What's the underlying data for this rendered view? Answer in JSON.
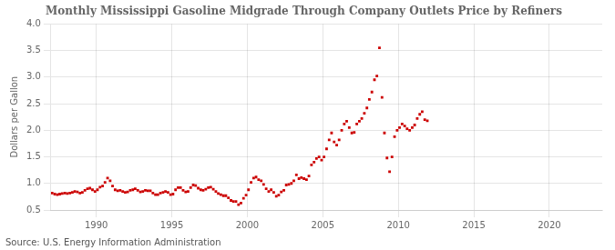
{
  "chart_data": {
    "type": "scatter",
    "title": "Monthly Mississippi Gasoline Midgrade Through Company Outlets Price by Refiners",
    "ylabel": "Dollars per Gallon",
    "annotations": [
      "Source: U.S. Energy Information Administration"
    ],
    "color": "#cc0000",
    "marker": "square",
    "grid": true,
    "xlim": [
      1987.0,
      2023.5
    ],
    "xticks": [
      1990,
      1995,
      2000,
      2005,
      2010,
      2015,
      2020
    ],
    "ylim": [
      0.5,
      4.0
    ],
    "yticks": [
      0.5,
      {
        "value": 1.0,
        "label": "1.0"
      },
      1.5,
      {
        "value": 2.0,
        "label": "2.0"
      },
      2.5,
      {
        "value": 3.0,
        "label": "3.0"
      },
      3.5,
      {
        "value": 4.0,
        "label": "4.0"
      }
    ],
    "x": [
      1987.08,
      1987.25,
      1987.42,
      1987.58,
      1987.75,
      1987.92,
      1988.08,
      1988.25,
      1988.42,
      1988.58,
      1988.75,
      1988.92,
      1989.08,
      1989.25,
      1989.42,
      1989.58,
      1989.75,
      1989.92,
      1990.08,
      1990.25,
      1990.42,
      1990.58,
      1990.75,
      1990.92,
      1991.08,
      1991.25,
      1991.42,
      1991.58,
      1991.75,
      1991.92,
      1992.08,
      1992.25,
      1992.42,
      1992.58,
      1992.75,
      1992.92,
      1993.08,
      1993.25,
      1993.42,
      1993.58,
      1993.75,
      1993.92,
      1994.08,
      1994.25,
      1994.42,
      1994.58,
      1994.75,
      1994.92,
      1995.08,
      1995.25,
      1995.42,
      1995.58,
      1995.75,
      1995.92,
      1996.08,
      1996.25,
      1996.42,
      1996.58,
      1996.75,
      1996.92,
      1997.08,
      1997.25,
      1997.42,
      1997.58,
      1997.75,
      1997.92,
      1998.08,
      1998.25,
      1998.42,
      1998.58,
      1998.75,
      1998.92,
      1999.08,
      1999.25,
      1999.42,
      1999.58,
      1999.75,
      1999.92,
      2000.08,
      2000.25,
      2000.42,
      2000.58,
      2000.75,
      2000.92,
      2001.08,
      2001.25,
      2001.42,
      2001.58,
      2001.75,
      2001.92,
      2002.08,
      2002.25,
      2002.42,
      2002.58,
      2002.75,
      2002.92,
      2003.08,
      2003.25,
      2003.42,
      2003.58,
      2003.75,
      2003.92,
      2004.08,
      2004.25,
      2004.42,
      2004.58,
      2004.75,
      2004.92,
      2005.08,
      2005.25,
      2005.42,
      2005.58,
      2005.75,
      2005.92,
      2006.08,
      2006.25,
      2006.42,
      2006.58,
      2006.75,
      2006.92,
      2007.08,
      2007.25,
      2007.42,
      2007.58,
      2007.75,
      2007.92,
      2008.08,
      2008.25,
      2008.42,
      2008.58,
      2008.75,
      2008.92,
      2009.08,
      2009.25,
      2009.42,
      2009.58,
      2009.75,
      2009.92,
      2010.08,
      2010.25,
      2010.42,
      2010.58,
      2010.75,
      2010.92,
      2011.08,
      2011.25,
      2011.42,
      2011.58,
      2011.75,
      2011.92
    ],
    "values": [
      0.82,
      0.8,
      0.79,
      0.8,
      0.81,
      0.82,
      0.81,
      0.82,
      0.83,
      0.85,
      0.84,
      0.82,
      0.83,
      0.87,
      0.9,
      0.91,
      0.88,
      0.85,
      0.88,
      0.93,
      0.95,
      1.02,
      1.1,
      1.05,
      0.95,
      0.88,
      0.86,
      0.87,
      0.85,
      0.83,
      0.84,
      0.87,
      0.88,
      0.9,
      0.87,
      0.84,
      0.85,
      0.87,
      0.86,
      0.86,
      0.82,
      0.79,
      0.79,
      0.82,
      0.83,
      0.85,
      0.83,
      0.79,
      0.8,
      0.88,
      0.92,
      0.92,
      0.87,
      0.84,
      0.85,
      0.92,
      0.97,
      0.96,
      0.91,
      0.88,
      0.87,
      0.89,
      0.92,
      0.93,
      0.89,
      0.85,
      0.81,
      0.79,
      0.77,
      0.77,
      0.73,
      0.68,
      0.66,
      0.66,
      0.6,
      0.63,
      0.72,
      0.78,
      0.88,
      1.02,
      1.1,
      1.12,
      1.07,
      1.05,
      0.98,
      0.9,
      0.85,
      0.88,
      0.83,
      0.76,
      0.78,
      0.84,
      0.87,
      0.97,
      0.98,
      1.0,
      1.05,
      1.16,
      1.09,
      1.11,
      1.09,
      1.07,
      1.14,
      1.35,
      1.4,
      1.47,
      1.5,
      1.44,
      1.5,
      1.65,
      1.82,
      1.95,
      1.78,
      1.72,
      1.82,
      2.0,
      2.12,
      2.17,
      2.05,
      1.95,
      1.96,
      2.12,
      2.17,
      2.22,
      2.32,
      2.42,
      2.58,
      2.72,
      2.95,
      3.02,
      3.55,
      2.62,
      1.95,
      1.48,
      1.22,
      1.5,
      1.88,
      2.0,
      2.05,
      2.12,
      2.08,
      2.03,
      2.0,
      2.05,
      2.1,
      2.22,
      2.3,
      2.35,
      2.2,
      2.18
    ]
  }
}
